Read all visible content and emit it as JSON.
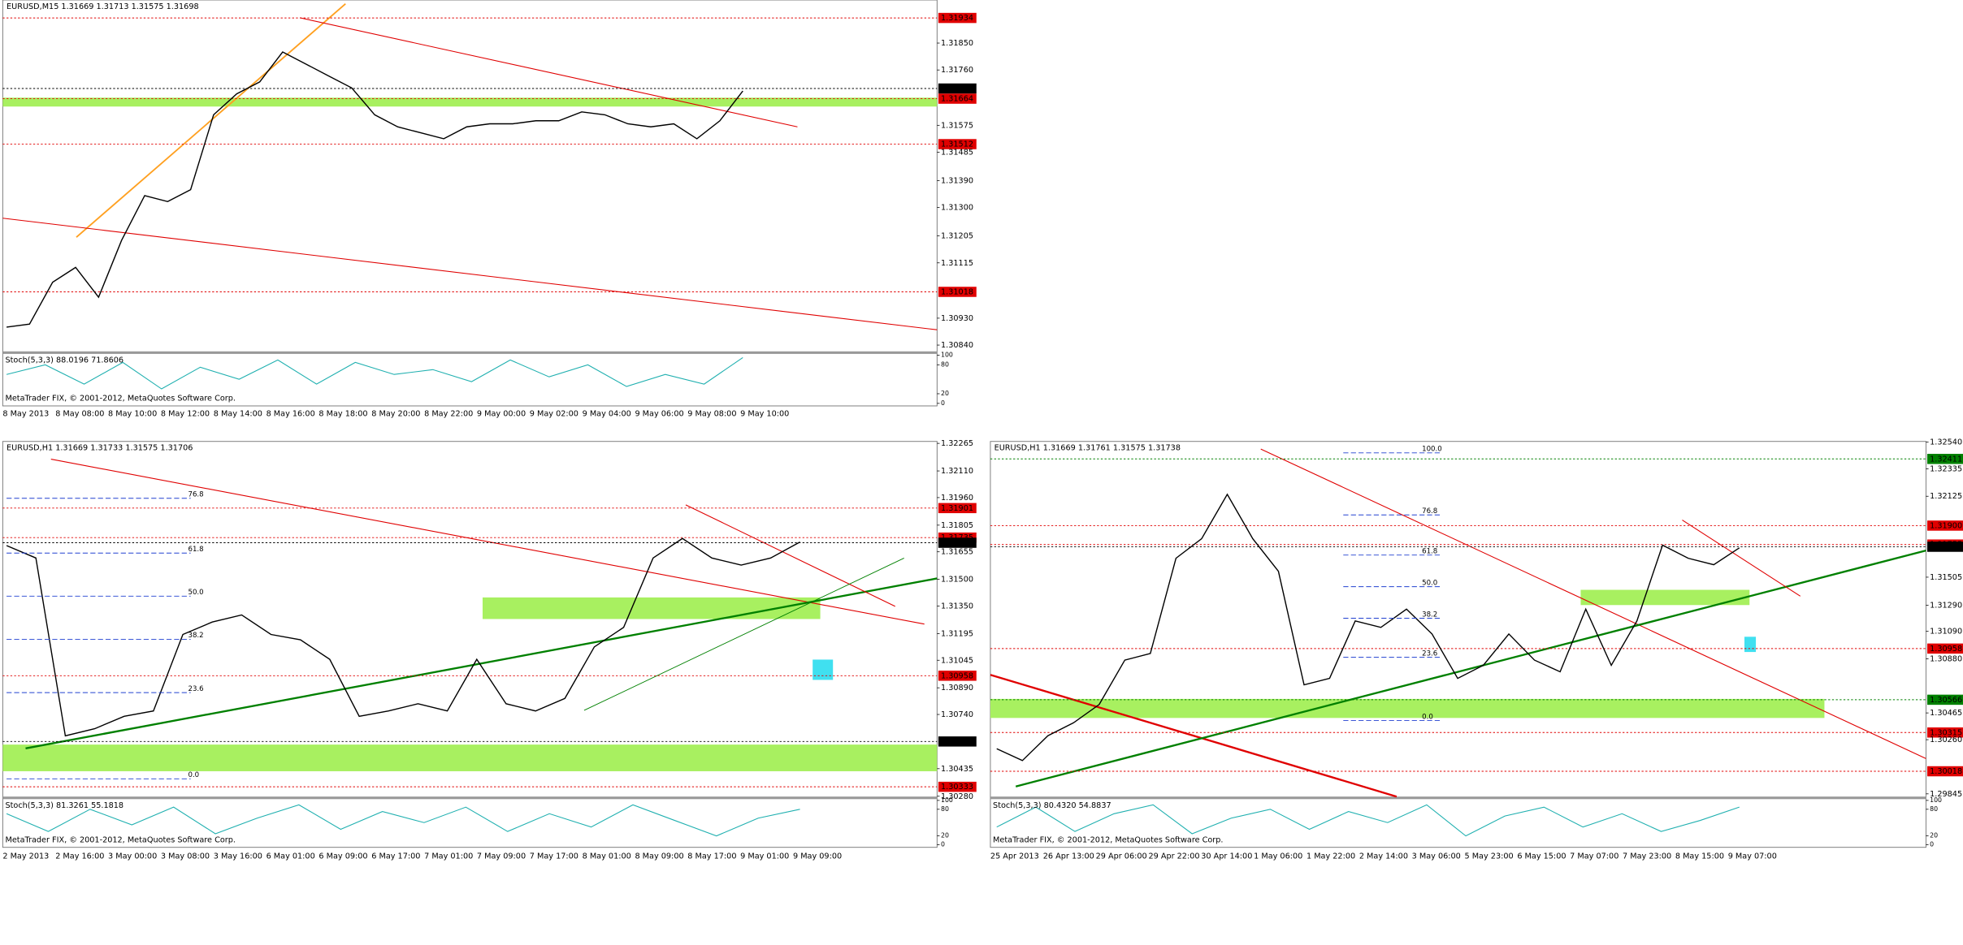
{
  "chart_data": [
    {
      "type": "line",
      "title": "EURUSD,M15  1.31669 1.31713 1.31575 1.31698",
      "indicator": "Stoch(5,3,3) 88.0196 71.8606",
      "copyright": "MetaTrader FIX, © 2001-2012, MetaQuotes Software Corp.",
      "ylim": [
        1.30819,
        1.31994
      ],
      "yticks": [
        {
          "value": 1.31934,
          "label": "1.31934",
          "color": "#e00000"
        },
        {
          "value": 1.3185,
          "label": "1.31850"
        },
        {
          "value": 1.3176,
          "label": "1.31760"
        },
        {
          "value": 1.31698,
          "label": "1.31698",
          "color": "#000000"
        },
        {
          "value": 1.31664,
          "label": "1.31664",
          "color": "#e00000"
        },
        1.31575,
        {
          "value": 1.31512,
          "label": "1.31512",
          "color": "#e00000"
        },
        1.31485,
        {
          "value": 1.3139,
          "label": "1.31390"
        },
        {
          "value": 1.313,
          "label": "1.31300"
        },
        1.31205,
        1.31115,
        {
          "value": 1.31018,
          "label": "1.31018",
          "color": "#e00000"
        },
        {
          "value": 1.3093,
          "label": "1.30930"
        },
        {
          "value": 1.3084,
          "label": "1.30840"
        }
      ],
      "values": [
        1.309,
        1.3091,
        1.3105,
        1.311,
        1.31,
        1.3119,
        1.3134,
        1.3132,
        1.3136,
        1.3161,
        1.3168,
        1.3172,
        1.3182,
        1.3178,
        1.3174,
        1.317,
        1.3161,
        1.3157,
        1.3155,
        1.3153,
        1.3157,
        1.3158,
        1.3158,
        1.3159,
        1.3159,
        1.3162,
        1.3161,
        1.3158,
        1.3157,
        1.3158,
        1.3153,
        1.3159,
        1.3169
      ],
      "color": "#000000",
      "stoch_values": [
        60,
        80,
        40,
        85,
        30,
        75,
        50,
        90,
        40,
        85,
        60,
        70,
        45,
        90,
        55,
        80,
        35,
        60,
        40,
        95
      ],
      "stoch_color": "#20b0b0",
      "stoch_lim": [
        0,
        100
      ],
      "stoch_ticks": [
        0,
        20,
        80,
        100
      ],
      "time_labels": [
        "8 May 2013",
        "8 May 08:00",
        "8 May 10:00",
        "8 May 12:00",
        "8 May 14:00",
        "8 May 16:00",
        "8 May 18:00",
        "8 May 20:00",
        "8 May 22:00",
        "9 May 00:00",
        "9 May 02:00",
        "9 May 04:00",
        "9 May 06:00",
        "9 May 08:00",
        "9 May 10:00"
      ]
    },
    {
      "type": "line",
      "title": "EURUSD,H1  1.31669 1.31733 1.31575 1.31706",
      "indicator": "Stoch(5,3,3) 81.3261 55.1818",
      "copyright": "MetaTrader FIX, © 2001-2012, MetaQuotes Software Corp.",
      "ylim": [
        1.30278,
        1.32276
      ],
      "yticks": [
        1.32265,
        {
          "value": 1.3211,
          "label": "1.32110"
        },
        {
          "value": 1.3196,
          "label": "1.31960"
        },
        {
          "value": 1.31901,
          "label": "1.31901",
          "color": "#e00000"
        },
        1.31805,
        {
          "value": 1.31735,
          "label": "1.31735",
          "color": "#e00000"
        },
        {
          "value": 1.31706,
          "label": "1.31706",
          "color": "#000000"
        },
        1.31655,
        {
          "value": 1.315,
          "label": "1.31500"
        },
        {
          "value": 1.3135,
          "label": "1.31350"
        },
        1.31195,
        1.31045,
        {
          "value": 1.30958,
          "label": "1.30958",
          "color": "#e00000"
        },
        {
          "value": 1.3089,
          "label": "1.30890"
        },
        {
          "value": 1.3074,
          "label": "1.30740"
        },
        {
          "value": 1.30588,
          "label": "1.30588",
          "color": "#000000"
        },
        1.30435,
        {
          "value": 1.30333,
          "label": "1.30333",
          "color": "#e00000"
        },
        {
          "value": 1.3028,
          "label": "1.30280"
        }
      ],
      "values": [
        1.3169,
        1.3162,
        1.3062,
        1.3066,
        1.3073,
        1.3076,
        1.3119,
        1.3126,
        1.313,
        1.3119,
        1.3116,
        1.3105,
        1.3073,
        1.3076,
        1.308,
        1.3076,
        1.3105,
        1.308,
        1.3076,
        1.3083,
        1.3112,
        1.3123,
        1.3162,
        1.3173,
        1.3162,
        1.3158,
        1.3162,
        1.3171
      ],
      "color": "#000000",
      "stoch_values": [
        70,
        30,
        80,
        45,
        85,
        25,
        60,
        90,
        35,
        75,
        50,
        85,
        30,
        70,
        40,
        90,
        55,
        20,
        60,
        80
      ],
      "stoch_color": "#20b0b0",
      "stoch_lim": [
        0,
        100
      ],
      "stoch_ticks": [
        0,
        20,
        80,
        100
      ],
      "fib_levels": [
        76.8,
        61.8,
        {
          "value": 50,
          "label": "50.0"
        },
        38.2,
        23.6,
        {
          "value": 0,
          "label": "0.0"
        }
      ],
      "time_labels": [
        "2 May 2013",
        "2 May 16:00",
        "3 May 00:00",
        "3 May 08:00",
        "3 May 16:00",
        "6 May 01:00",
        "6 May 09:00",
        "6 May 17:00",
        "7 May 01:00",
        "7 May 09:00",
        "7 May 17:00",
        "8 May 01:00",
        "8 May 09:00",
        "8 May 17:00",
        "9 May 01:00",
        "9 May 09:00"
      ]
    },
    {
      "type": "line",
      "title": "EURUSD,H1  1.31669 1.31761 1.31575 1.31738",
      "indicator": "Stoch(5,3,3) 80.4320 54.8837",
      "copyright": "MetaTrader FIX, © 2001-2012, MetaQuotes Software Corp.",
      "ylim": [
        1.29824,
        1.32545
      ],
      "yticks": [
        {
          "value": 1.3254,
          "label": "1.32540"
        },
        {
          "value": 1.32411,
          "label": "1.32411",
          "color": "#008000"
        },
        1.32335,
        1.32125,
        {
          "value": 1.319,
          "label": "1.31900",
          "color": "#e00000"
        },
        {
          "value": 1.31755,
          "label": "1.31755",
          "color": "#e00000"
        },
        {
          "value": 1.31738,
          "label": "1.31738",
          "color": "#000000"
        },
        1.31505,
        {
          "value": 1.3129,
          "label": "1.31290"
        },
        {
          "value": 1.3109,
          "label": "1.31090"
        },
        {
          "value": 1.30958,
          "label": "1.30958",
          "color": "#e00000"
        },
        {
          "value": 1.3088,
          "label": "1.30880"
        },
        {
          "value": 1.30566,
          "label": "1.30566",
          "color": "#008000"
        },
        1.30465,
        {
          "value": 1.30315,
          "label": "1.30315",
          "color": "#e00000"
        },
        {
          "value": 1.3026,
          "label": "1.30260"
        },
        {
          "value": 1.30018,
          "label": "1.30018",
          "color": "#e00000"
        },
        1.29845
      ],
      "values": [
        1.3019,
        1.301,
        1.3029,
        1.3039,
        1.3053,
        1.3087,
        1.3092,
        1.3165,
        1.318,
        1.3214,
        1.318,
        1.3155,
        1.3068,
        1.3073,
        1.3117,
        1.3112,
        1.3126,
        1.3107,
        1.3073,
        1.3083,
        1.3107,
        1.3087,
        1.3078,
        1.3126,
        1.3083,
        1.3117,
        1.3175,
        1.3165,
        1.316,
        1.3173
      ],
      "color": "#000000",
      "stoch_values": [
        40,
        85,
        30,
        70,
        90,
        25,
        60,
        80,
        35,
        75,
        50,
        90,
        20,
        65,
        85,
        40,
        70,
        30,
        55,
        85
      ],
      "stoch_color": "#20b0b0",
      "stoch_lim": [
        0,
        100
      ],
      "stoch_ticks": [
        0,
        20,
        80,
        100
      ],
      "fib_levels": [
        {
          "value": 100,
          "label": "100.0"
        },
        76.8,
        61.8,
        {
          "value": 50,
          "label": "50.0"
        },
        38.2,
        23.6,
        {
          "value": 0,
          "label": "0.0"
        }
      ],
      "time_labels": [
        "25 Apr 2013",
        "26 Apr 13:00",
        "29 Apr 06:00",
        "29 Apr 22:00",
        "30 Apr 14:00",
        "1 May 06:00",
        "1 May 22:00",
        "2 May 14:00",
        "3 May 06:00",
        "5 May 23:00",
        "6 May 15:00",
        "7 May 07:00",
        "7 May 23:00",
        "8 May 15:00",
        "9 May 07:00"
      ]
    }
  ]
}
